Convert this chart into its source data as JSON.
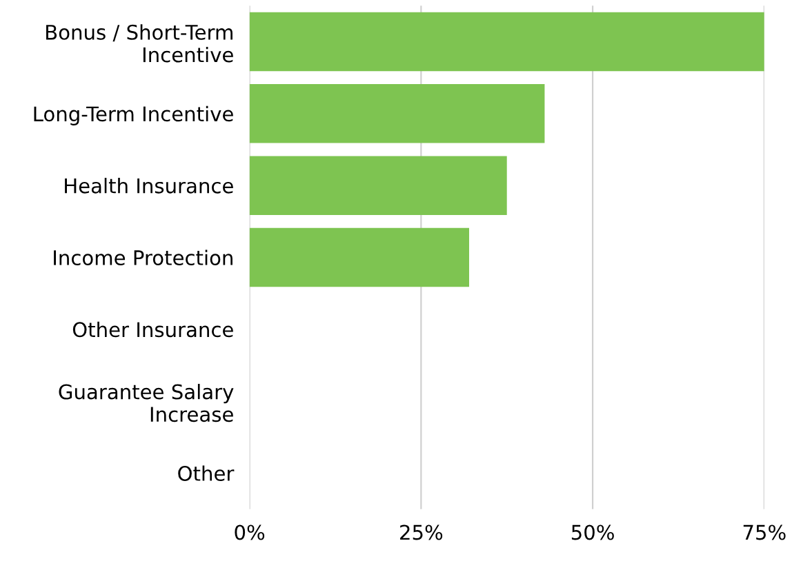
{
  "chart_data": {
    "type": "bar",
    "orientation": "horizontal",
    "categories": [
      "Bonus / Short-Term\nIncentive",
      "Long-Term Incentive",
      "Health Insurance",
      "Income Protection",
      "Other Insurance",
      "Guarantee Salary\nIncrease",
      "Other"
    ],
    "values": [
      75,
      43,
      37.5,
      32,
      null,
      null,
      null
    ],
    "color": "#7ec451",
    "xlim": [
      0,
      75
    ],
    "xticks": [
      {
        "value": 0,
        "label": "0%"
      },
      {
        "value": 25,
        "label": "25%"
      },
      {
        "value": 50,
        "label": "50%"
      },
      {
        "value": 75,
        "label": "75%"
      }
    ],
    "grid": "x",
    "legend": false
  }
}
